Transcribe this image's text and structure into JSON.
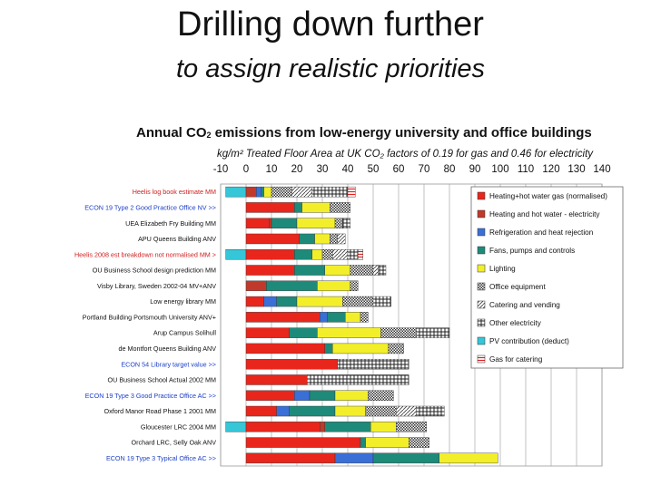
{
  "slide": {
    "title": "Drilling down further",
    "subtitle": "to assign realistic priorities"
  },
  "chart_data": {
    "type": "bar",
    "orientation": "horizontal",
    "stacked": true,
    "title_main": "Annual CO",
    "title_sub2": "2",
    "title_rest": " emissions from low-energy university and office buildings",
    "subtitle": "kg/m² Treated Floor Area at UK CO₂ factors of 0.19 for gas and 0.46 for electricity",
    "xlim": [
      -10,
      140
    ],
    "xticks": [
      -10,
      0,
      10,
      20,
      30,
      40,
      50,
      60,
      70,
      80,
      90,
      100,
      110,
      120,
      130,
      140
    ],
    "grid": true,
    "legend_position": "right",
    "colors": {
      "heating_gas": "#e8261c",
      "heating_elec": "#c0392b",
      "refrigeration": "#3a6fd8",
      "fans_pumps": "#1e8a7a",
      "lighting": "#f2ef2a",
      "office_equipment": "#d4d4d4",
      "catering": "#ffffff",
      "other_electricity": "#ffffff",
      "pv": "#35c6d8",
      "gas_catering": "#ffffff",
      "highlight_label": "#d02020",
      "benchmark_label": "#1c3fc8"
    },
    "series": [
      {
        "key": "heating_gas",
        "name": "Heating+hot water gas (normalised)"
      },
      {
        "key": "heating_elec",
        "name": "Heating and hot water  - electricity"
      },
      {
        "key": "refrigeration",
        "name": "Refrigeration and heat rejection"
      },
      {
        "key": "fans_pumps",
        "name": "Fans, pumps and controls"
      },
      {
        "key": "lighting",
        "name": "Lighting"
      },
      {
        "key": "office_equipment",
        "name": "Office equipment"
      },
      {
        "key": "catering",
        "name": "Catering and vending"
      },
      {
        "key": "other_electricity",
        "name": "Other electricity"
      },
      {
        "key": "pv",
        "name": "PV contribution (deduct)"
      },
      {
        "key": "gas_catering",
        "name": "Gas for catering"
      }
    ],
    "categories": [
      {
        "label": "Heelis log book estimate MM",
        "style": "highlight",
        "pv": -8,
        "values": {
          "heating_gas": 0,
          "heating_elec": 4,
          "refrigeration": 2,
          "fans_pumps": 1,
          "lighting": 3,
          "office_equipment": 8,
          "catering": 8,
          "other_electricity": 14,
          "gas_catering": 3
        }
      },
      {
        "label": "ECON 19 Type 2 Good Practice Office NV >>",
        "style": "benchmark",
        "pv": 0,
        "values": {
          "heating_gas": 19,
          "heating_elec": 0,
          "refrigeration": 0,
          "fans_pumps": 3,
          "lighting": 11,
          "office_equipment": 8,
          "catering": 0,
          "other_electricity": 0,
          "gas_catering": 0
        }
      },
      {
        "label": "UEA Elizabeth Fry Building MM",
        "style": "normal",
        "pv": 0,
        "values": {
          "heating_gas": 9,
          "heating_elec": 1,
          "refrigeration": 0,
          "fans_pumps": 10,
          "lighting": 15,
          "office_equipment": 3,
          "catering": 0,
          "other_electricity": 3,
          "gas_catering": 0
        }
      },
      {
        "label": "APU Queens Building ANV",
        "style": "normal",
        "pv": 0,
        "values": {
          "heating_gas": 21,
          "heating_elec": 0,
          "refrigeration": 0,
          "fans_pumps": 6,
          "lighting": 6,
          "office_equipment": 3,
          "catering": 3,
          "other_electricity": 0,
          "gas_catering": 0
        }
      },
      {
        "label": "Heelis 2008 est breakdown not normalised MM >",
        "style": "highlight",
        "pv": -8,
        "values": {
          "heating_gas": 19,
          "heating_elec": 0,
          "refrigeration": 0,
          "fans_pumps": 7,
          "lighting": 4,
          "office_equipment": 4,
          "catering": 6,
          "other_electricity": 4,
          "gas_catering": 2
        }
      },
      {
        "label": "OU Business School design prediction MM",
        "style": "normal",
        "pv": 0,
        "values": {
          "heating_gas": 19,
          "heating_elec": 0,
          "refrigeration": 0,
          "fans_pumps": 12,
          "lighting": 10,
          "office_equipment": 9,
          "catering": 2,
          "other_electricity": 3,
          "gas_catering": 0
        }
      },
      {
        "label": "Visby Library, Sweden 2002-04 MV+ANV",
        "style": "normal",
        "pv": 0,
        "values": {
          "heating_gas": 0,
          "heating_elec": 8,
          "refrigeration": 0,
          "fans_pumps": 20,
          "lighting": 13,
          "office_equipment": 3,
          "catering": 0,
          "other_electricity": 0,
          "gas_catering": 0
        }
      },
      {
        "label": "Low energy library MM",
        "style": "normal",
        "pv": 0,
        "values": {
          "heating_gas": 7,
          "heating_elec": 0,
          "refrigeration": 5,
          "fans_pumps": 8,
          "lighting": 18,
          "office_equipment": 12,
          "catering": 0,
          "other_electricity": 7,
          "gas_catering": 0
        }
      },
      {
        "label": "Portland Building Portsmouth University ANV+",
        "style": "normal",
        "pv": 0,
        "values": {
          "heating_gas": 29,
          "heating_elec": 0,
          "refrigeration": 3,
          "fans_pumps": 7,
          "lighting": 6,
          "office_equipment": 3,
          "catering": 0,
          "other_electricity": 0,
          "gas_catering": 0
        }
      },
      {
        "label": "Arup Campus Solihull",
        "style": "normal",
        "pv": 0,
        "values": {
          "heating_gas": 17,
          "heating_elec": 0,
          "refrigeration": 0,
          "fans_pumps": 11,
          "lighting": 25,
          "office_equipment": 14,
          "catering": 0,
          "other_electricity": 13,
          "gas_catering": 0
        }
      },
      {
        "label": "de Montfort Queens Building ANV",
        "style": "normal",
        "pv": 0,
        "values": {
          "heating_gas": 31,
          "heating_elec": 0,
          "refrigeration": 0,
          "fans_pumps": 3,
          "lighting": 22,
          "office_equipment": 6,
          "catering": 0,
          "other_electricity": 0,
          "gas_catering": 0
        }
      },
      {
        "label": "ECON 54 Library target value >>",
        "style": "benchmark",
        "pv": 0,
        "values": {
          "heating_gas": 36,
          "heating_elec": 0,
          "refrigeration": 0,
          "fans_pumps": 0,
          "lighting": 0,
          "office_equipment": 0,
          "catering": 0,
          "other_electricity": 28,
          "gas_catering": 0
        }
      },
      {
        "label": "OU Business School Actual 2002 MM",
        "style": "normal",
        "pv": 0,
        "values": {
          "heating_gas": 24,
          "heating_elec": 0,
          "refrigeration": 0,
          "fans_pumps": 0,
          "lighting": 0,
          "office_equipment": 0,
          "catering": 0,
          "other_electricity": 40,
          "gas_catering": 0
        }
      },
      {
        "label": "ECON 19 Type 3 Good Practice Office AC >>",
        "style": "benchmark",
        "pv": 0,
        "values": {
          "heating_gas": 19,
          "heating_elec": 0,
          "refrigeration": 6,
          "fans_pumps": 10,
          "lighting": 13,
          "office_equipment": 10,
          "catering": 0,
          "other_electricity": 0,
          "gas_catering": 0
        }
      },
      {
        "label": "Oxford Manor Road Phase 1 2001 MM",
        "style": "normal",
        "pv": 0,
        "values": {
          "heating_gas": 12,
          "heating_elec": 0,
          "refrigeration": 5,
          "fans_pumps": 18,
          "lighting": 12,
          "office_equipment": 12,
          "catering": 8,
          "other_electricity": 11,
          "gas_catering": 0
        }
      },
      {
        "label": "Gloucester LRC 2004 MM",
        "style": "normal",
        "pv": -8,
        "values": {
          "heating_gas": 29,
          "heating_elec": 2,
          "refrigeration": 0,
          "fans_pumps": 18,
          "lighting": 10,
          "office_equipment": 12,
          "catering": 0,
          "other_electricity": 0,
          "gas_catering": 0
        }
      },
      {
        "label": "Orchard LRC, Selly Oak ANV",
        "style": "normal",
        "pv": 0,
        "values": {
          "heating_gas": 45,
          "heating_elec": 0,
          "refrigeration": 0,
          "fans_pumps": 2,
          "lighting": 17,
          "office_equipment": 8,
          "catering": 0,
          "other_electricity": 0,
          "gas_catering": 0
        }
      },
      {
        "label": "ECON 19 Type 3 Typical  Office AC >>",
        "style": "benchmark",
        "pv": 0,
        "values": {
          "heating_gas": 35,
          "heating_elec": 0,
          "refrigeration": 15,
          "fans_pumps": 26,
          "lighting": 23,
          "office_equipment": 0,
          "catering": 0,
          "other_electricity": 0,
          "gas_catering": 0
        }
      }
    ]
  }
}
